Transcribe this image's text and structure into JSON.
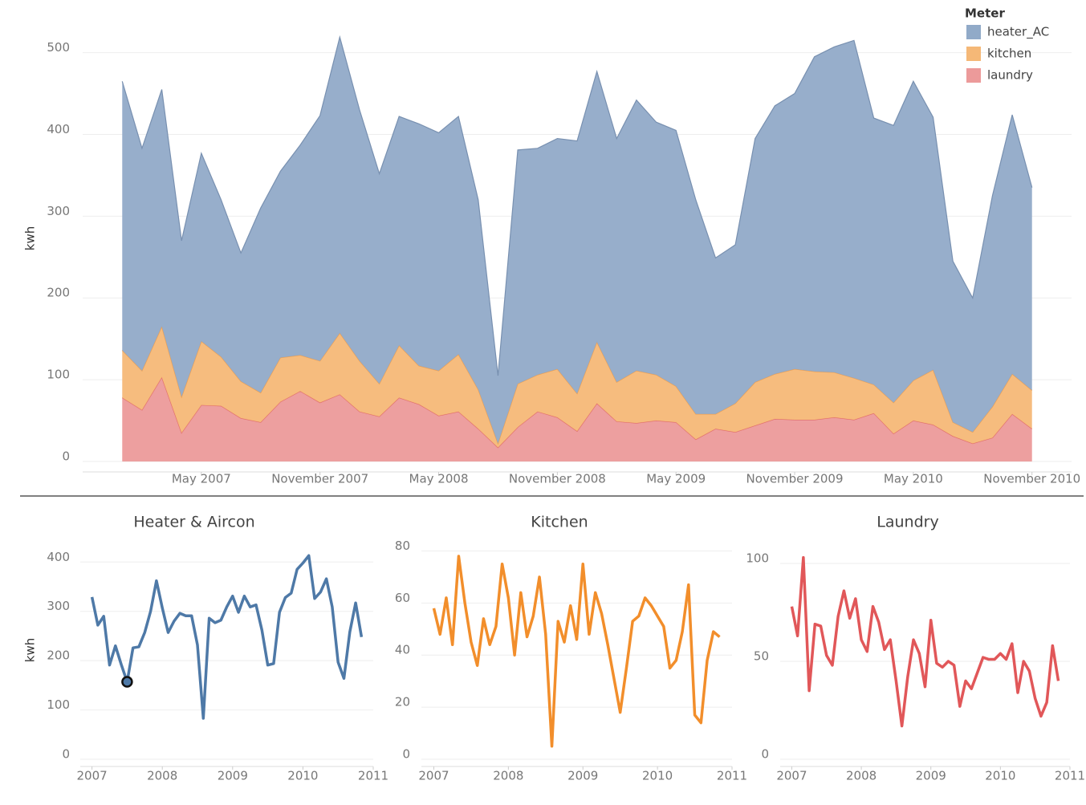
{
  "chart_data": [
    {
      "type": "area",
      "stacked": true,
      "y_label": "kwh",
      "legend_title": "Meter",
      "legend": "top-right",
      "grid": true,
      "x": [
        "2007-01",
        "2007-02",
        "2007-03",
        "2007-04",
        "2007-05",
        "2007-06",
        "2007-07",
        "2007-08",
        "2007-09",
        "2007-10",
        "2007-11",
        "2007-12",
        "2008-01",
        "2008-02",
        "2008-03",
        "2008-04",
        "2008-05",
        "2008-06",
        "2008-07",
        "2008-08",
        "2008-09",
        "2008-10",
        "2008-11",
        "2008-12",
        "2009-01",
        "2009-02",
        "2009-03",
        "2009-04",
        "2009-05",
        "2009-06",
        "2009-07",
        "2009-08",
        "2009-09",
        "2009-10",
        "2009-11",
        "2009-12",
        "2010-01",
        "2010-02",
        "2010-03",
        "2010-04",
        "2010-05",
        "2010-06",
        "2010-07",
        "2010-08",
        "2010-09",
        "2010-10",
        "2010-11"
      ],
      "xlim": [
        "2006-11",
        "2011-01"
      ],
      "xticks": [
        {
          "value": "2007-05",
          "label": "May 2007"
        },
        {
          "value": "2007-11",
          "label": "November 2007"
        },
        {
          "value": "2008-05",
          "label": "May 2008"
        },
        {
          "value": "2008-11",
          "label": "November 2008"
        },
        {
          "value": "2009-05",
          "label": "May 2009"
        },
        {
          "value": "2009-11",
          "label": "November 2009"
        },
        {
          "value": "2010-05",
          "label": "May 2010"
        },
        {
          "value": "2010-11",
          "label": "November 2010"
        }
      ],
      "ylim": [
        0,
        533
      ],
      "yticks": [
        0,
        100,
        200,
        300,
        400,
        500
      ],
      "series": [
        {
          "name": "heater_AC",
          "color": "#91aac8",
          "line_color": "#7890b0",
          "values": [
            329,
            272,
            290,
            191,
            230,
            192,
            157,
            226,
            228,
            257,
            300,
            362,
            307,
            257,
            280,
            296,
            291,
            291,
            232,
            83,
            286,
            277,
            282,
            309,
            331,
            298,
            331,
            309,
            313,
            262,
            191,
            194,
            298,
            328,
            337,
            385,
            398,
            413,
            326,
            339,
            366,
            309,
            197,
            164,
            258,
            317,
            248
          ]
        },
        {
          "name": "kitchen",
          "color": "#f5b877",
          "line_color": "#f0a050",
          "values": [
            58,
            48,
            62,
            44,
            78,
            60,
            45,
            36,
            54,
            44,
            51,
            75,
            62,
            40,
            64,
            47,
            55,
            70,
            48,
            5,
            53,
            45,
            59,
            46,
            75,
            48,
            64,
            56,
            44,
            31,
            18,
            35,
            53,
            55,
            62,
            59,
            55,
            51,
            35,
            38,
            49,
            67,
            17,
            14,
            38,
            49,
            47
          ]
        },
        {
          "name": "laundry",
          "color": "#ec9a9a",
          "line_color": "#e06c6c",
          "values": [
            78,
            63,
            103,
            35,
            69,
            68,
            53,
            48,
            73,
            86,
            72,
            82,
            61,
            55,
            78,
            70,
            56,
            61,
            40,
            17,
            42,
            61,
            54,
            37,
            71,
            49,
            47,
            50,
            48,
            27,
            40,
            36,
            44,
            52,
            51,
            51,
            54,
            51,
            59,
            34,
            50,
            45,
            31,
            22,
            29,
            58,
            40
          ]
        }
      ]
    },
    {
      "type": "line",
      "title": "Heater & Aircon",
      "y_label": "kwh",
      "color": "#4e79a7",
      "grid": true,
      "highlighted": 6,
      "x": [
        "2007-01",
        "2007-02",
        "2007-03",
        "2007-04",
        "2007-05",
        "2007-06",
        "2007-07",
        "2007-08",
        "2007-09",
        "2007-10",
        "2007-11",
        "2007-12",
        "2008-01",
        "2008-02",
        "2008-03",
        "2008-04",
        "2008-05",
        "2008-06",
        "2008-07",
        "2008-08",
        "2008-09",
        "2008-10",
        "2008-11",
        "2008-12",
        "2009-01",
        "2009-02",
        "2009-03",
        "2009-04",
        "2009-05",
        "2009-06",
        "2009-07",
        "2009-08",
        "2009-09",
        "2009-10",
        "2009-11",
        "2009-12",
        "2010-01",
        "2010-02",
        "2010-03",
        "2010-04",
        "2010-05",
        "2010-06",
        "2010-07",
        "2010-08",
        "2010-09",
        "2010-10",
        "2010-11"
      ],
      "xlim": [
        "2006-11",
        "2011-01"
      ],
      "xticks": [
        {
          "value": "2007-01",
          "label": "2007"
        },
        {
          "value": "2008-01",
          "label": "2008"
        },
        {
          "value": "2009-01",
          "label": "2009"
        },
        {
          "value": "2010-01",
          "label": "2010"
        },
        {
          "value": "2011-01",
          "label": "2011"
        }
      ],
      "ylim": [
        0,
        433
      ],
      "yticks": [
        0,
        100,
        200,
        300,
        400
      ],
      "values": [
        329,
        272,
        290,
        191,
        230,
        192,
        157,
        226,
        228,
        257,
        300,
        362,
        307,
        257,
        280,
        296,
        291,
        291,
        232,
        83,
        286,
        277,
        282,
        309,
        331,
        298,
        331,
        309,
        313,
        262,
        191,
        194,
        298,
        328,
        337,
        385,
        398,
        413,
        326,
        339,
        366,
        309,
        197,
        164,
        258,
        317,
        248
      ]
    },
    {
      "type": "line",
      "title": "Kitchen",
      "color": "#f28e2b",
      "grid": true,
      "x": [
        "2007-01",
        "2007-02",
        "2007-03",
        "2007-04",
        "2007-05",
        "2007-06",
        "2007-07",
        "2007-08",
        "2007-09",
        "2007-10",
        "2007-11",
        "2007-12",
        "2008-01",
        "2008-02",
        "2008-03",
        "2008-04",
        "2008-05",
        "2008-06",
        "2008-07",
        "2008-08",
        "2008-09",
        "2008-10",
        "2008-11",
        "2008-12",
        "2009-01",
        "2009-02",
        "2009-03",
        "2009-04",
        "2009-05",
        "2009-06",
        "2009-07",
        "2009-08",
        "2009-09",
        "2009-10",
        "2009-11",
        "2009-12",
        "2010-01",
        "2010-02",
        "2010-03",
        "2010-04",
        "2010-05",
        "2010-06",
        "2010-07",
        "2010-08",
        "2010-09",
        "2010-10",
        "2010-11"
      ],
      "xlim": [
        "2006-11",
        "2011-01"
      ],
      "xticks": [
        {
          "value": "2007-01",
          "label": "2007"
        },
        {
          "value": "2008-01",
          "label": "2008"
        },
        {
          "value": "2009-01",
          "label": "2009"
        },
        {
          "value": "2010-01",
          "label": "2010"
        },
        {
          "value": "2011-01",
          "label": "2011"
        }
      ],
      "ylim": [
        0,
        82
      ],
      "yticks": [
        0,
        20,
        40,
        60,
        80
      ],
      "values": [
        58,
        48,
        62,
        44,
        78,
        60,
        45,
        36,
        54,
        44,
        51,
        75,
        62,
        40,
        64,
        47,
        55,
        70,
        48,
        5,
        53,
        45,
        59,
        46,
        75,
        48,
        64,
        56,
        44,
        31,
        18,
        35,
        53,
        55,
        62,
        59,
        55,
        51,
        35,
        38,
        49,
        67,
        17,
        14,
        38,
        49,
        47
      ]
    },
    {
      "type": "line",
      "title": "Laundry",
      "color": "#e15759",
      "grid": true,
      "x": [
        "2007-01",
        "2007-02",
        "2007-03",
        "2007-04",
        "2007-05",
        "2007-06",
        "2007-07",
        "2007-08",
        "2007-09",
        "2007-10",
        "2007-11",
        "2007-12",
        "2008-01",
        "2008-02",
        "2008-03",
        "2008-04",
        "2008-05",
        "2008-06",
        "2008-07",
        "2008-08",
        "2008-09",
        "2008-10",
        "2008-11",
        "2008-12",
        "2009-01",
        "2009-02",
        "2009-03",
        "2009-04",
        "2009-05",
        "2009-06",
        "2009-07",
        "2009-08",
        "2009-09",
        "2009-10",
        "2009-11",
        "2009-12",
        "2010-01",
        "2010-02",
        "2010-03",
        "2010-04",
        "2010-05",
        "2010-06",
        "2010-07",
        "2010-08",
        "2010-09",
        "2010-10",
        "2010-11"
      ],
      "xlim": [
        "2006-11",
        "2011-01"
      ],
      "xticks": [
        {
          "value": "2007-01",
          "label": "2007"
        },
        {
          "value": "2008-01",
          "label": "2008"
        },
        {
          "value": "2009-01",
          "label": "2009"
        },
        {
          "value": "2010-01",
          "label": "2010"
        },
        {
          "value": "2011-01",
          "label": "2011"
        }
      ],
      "ylim": [
        0,
        109
      ],
      "yticks": [
        0,
        50,
        100
      ],
      "values": [
        78,
        63,
        103,
        35,
        69,
        68,
        53,
        48,
        73,
        86,
        72,
        82,
        61,
        55,
        78,
        70,
        56,
        61,
        40,
        17,
        42,
        61,
        54,
        37,
        71,
        49,
        47,
        50,
        48,
        27,
        40,
        36,
        44,
        52,
        51,
        51,
        54,
        51,
        59,
        34,
        50,
        45,
        31,
        22,
        29,
        58,
        40
      ]
    }
  ]
}
